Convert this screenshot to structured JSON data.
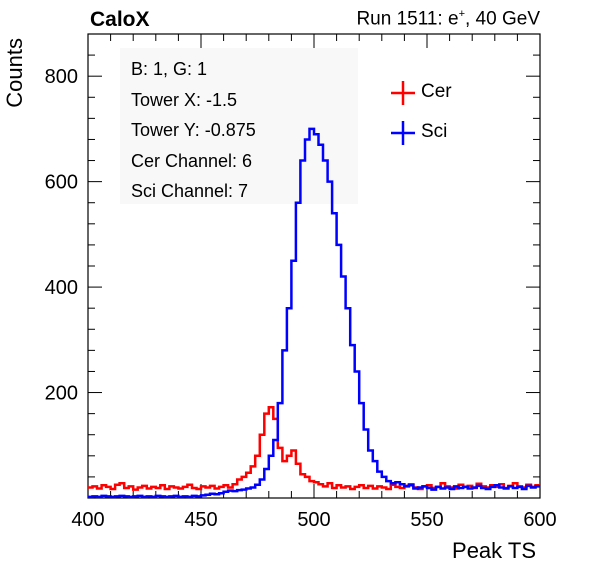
{
  "header": {
    "left_label": "CaloX",
    "run_label_prefix": "Run 1511: e",
    "run_label_sup": "+",
    "run_label_suffix": ", 40 GeV"
  },
  "info_box": {
    "lines": [
      "B: 1, G: 1",
      "Tower X: -1.5",
      "Tower Y: -0.875",
      "Cer Channel: 6",
      "Sci Channel: 7"
    ]
  },
  "chart_data": {
    "type": "line",
    "xlabel": "Peak TS",
    "ylabel": "Counts",
    "xlim": [
      400,
      600
    ],
    "ylim": [
      0,
      880
    ],
    "x_ticks": [
      400,
      450,
      500,
      550,
      600
    ],
    "y_ticks": [
      200,
      400,
      600,
      800
    ],
    "grid": false,
    "legend_position": "top-right",
    "bin_width": 2,
    "x": [
      400,
      402,
      404,
      406,
      408,
      410,
      412,
      414,
      416,
      418,
      420,
      422,
      424,
      426,
      428,
      430,
      432,
      434,
      436,
      438,
      440,
      442,
      444,
      446,
      448,
      450,
      452,
      454,
      456,
      458,
      460,
      462,
      464,
      466,
      468,
      470,
      472,
      474,
      476,
      478,
      480,
      482,
      484,
      486,
      488,
      490,
      492,
      494,
      496,
      498,
      500,
      502,
      504,
      506,
      508,
      510,
      512,
      514,
      516,
      518,
      520,
      522,
      524,
      526,
      528,
      530,
      532,
      534,
      536,
      538,
      540,
      542,
      544,
      546,
      548,
      550,
      552,
      554,
      556,
      558,
      560,
      562,
      564,
      566,
      568,
      570,
      572,
      574,
      576,
      578,
      580,
      582,
      584,
      586,
      588,
      590,
      592,
      594,
      596,
      598
    ],
    "series": [
      {
        "name": "Cer",
        "color": "#ff0000",
        "values": [
          20,
          22,
          18,
          24,
          21,
          17,
          25,
          28,
          19,
          22,
          16,
          20,
          23,
          18,
          21,
          19,
          24,
          17,
          22,
          20,
          18,
          21,
          25,
          19,
          17,
          22,
          20,
          23,
          18,
          21,
          24,
          20,
          26,
          35,
          40,
          48,
          60,
          80,
          120,
          160,
          172,
          150,
          95,
          70,
          80,
          90,
          65,
          45,
          40,
          32,
          30,
          26,
          22,
          28,
          19,
          24,
          20,
          22,
          17,
          21,
          24,
          19,
          23,
          18,
          22,
          20,
          17,
          25,
          21,
          19,
          23,
          26,
          20,
          17,
          22,
          24,
          19,
          21,
          28,
          22,
          20,
          18,
          25,
          21,
          23,
          19,
          27,
          22,
          20,
          24,
          21,
          26,
          19,
          23,
          28,
          22,
          20,
          25,
          21,
          24
        ]
      },
      {
        "name": "Sci",
        "color": "#0000ff",
        "values": [
          2,
          3,
          2,
          4,
          3,
          2,
          3,
          4,
          3,
          2,
          3,
          4,
          2,
          3,
          2,
          4,
          3,
          2,
          3,
          4,
          2,
          3,
          2,
          4,
          3,
          5,
          6,
          8,
          7,
          9,
          12,
          14,
          13,
          15,
          16,
          18,
          20,
          25,
          35,
          55,
          80,
          110,
          180,
          280,
          360,
          450,
          560,
          640,
          680,
          700,
          690,
          670,
          640,
          600,
          540,
          480,
          420,
          360,
          290,
          240,
          180,
          130,
          90,
          70,
          50,
          40,
          32,
          28,
          30,
          26,
          22,
          24,
          18,
          20,
          22,
          19,
          16,
          21,
          18,
          20,
          17,
          22,
          19,
          21,
          18,
          20,
          23,
          19,
          17,
          21,
          24,
          20,
          18,
          22,
          19,
          21,
          17,
          23,
          20,
          22
        ]
      }
    ]
  }
}
